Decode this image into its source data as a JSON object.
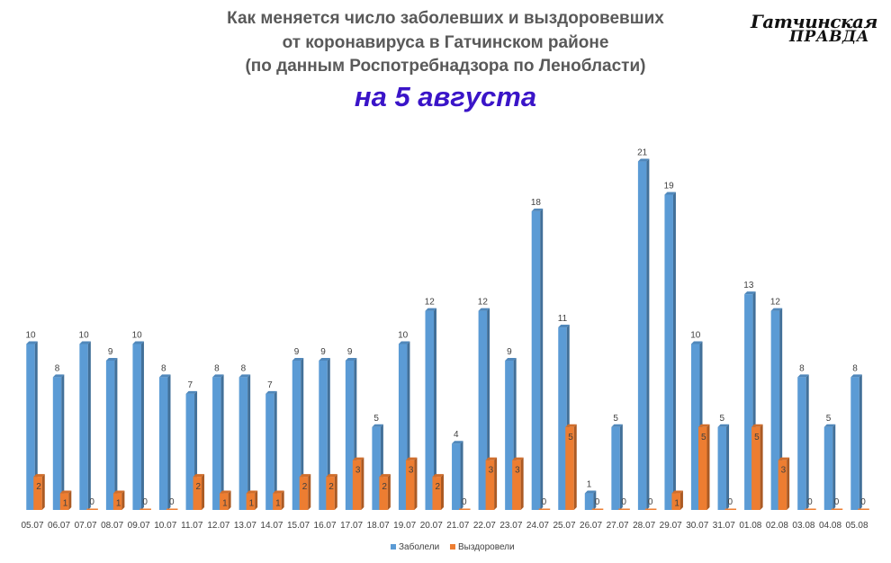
{
  "header": {
    "title_line1": "Как меняется число  заболевших и выздоровевших",
    "title_line2": "от коронавируса в Гатчинском районе",
    "title_line3": "(по данным Роспотребнадзора по Ленобласти)",
    "date_label": "на 5 августа"
  },
  "logo": {
    "line1": "Гатчинская",
    "line2": "ПРАВДА"
  },
  "colors": {
    "sick": "#5b9bd5",
    "recovered": "#ed7d31",
    "date_text": "#3a14c8"
  },
  "chart_data": {
    "type": "bar",
    "categories": [
      "05.07",
      "06.07",
      "07.07",
      "08.07",
      "09.07",
      "10.07",
      "11.07",
      "12.07",
      "13.07",
      "14.07",
      "15.07",
      "16.07",
      "17.07",
      "18.07",
      "19.07",
      "20.07",
      "21.07",
      "22.07",
      "23.07",
      "24.07",
      "25.07",
      "26.07",
      "27.07",
      "28.07",
      "29.07",
      "30.07",
      "31.07",
      "01.08",
      "02.08",
      "03.08",
      "04.08",
      "05.08"
    ],
    "series": [
      {
        "name": "Заболели",
        "values": [
          10,
          8,
          10,
          9,
          10,
          8,
          7,
          8,
          8,
          7,
          9,
          9,
          9,
          5,
          10,
          12,
          4,
          12,
          9,
          18,
          11,
          1,
          5,
          21,
          19,
          10,
          5,
          13,
          12,
          8,
          5,
          8
        ]
      },
      {
        "name": "Выздоровели",
        "values": [
          2,
          1,
          0,
          1,
          0,
          0,
          2,
          1,
          1,
          1,
          2,
          2,
          3,
          2,
          3,
          2,
          0,
          3,
          3,
          0,
          5,
          0,
          0,
          0,
          1,
          5,
          0,
          5,
          3,
          0,
          0,
          0
        ]
      }
    ],
    "ylim": [
      0,
      23
    ],
    "grid": false,
    "data_labels": true,
    "legend_position": "bottom"
  }
}
